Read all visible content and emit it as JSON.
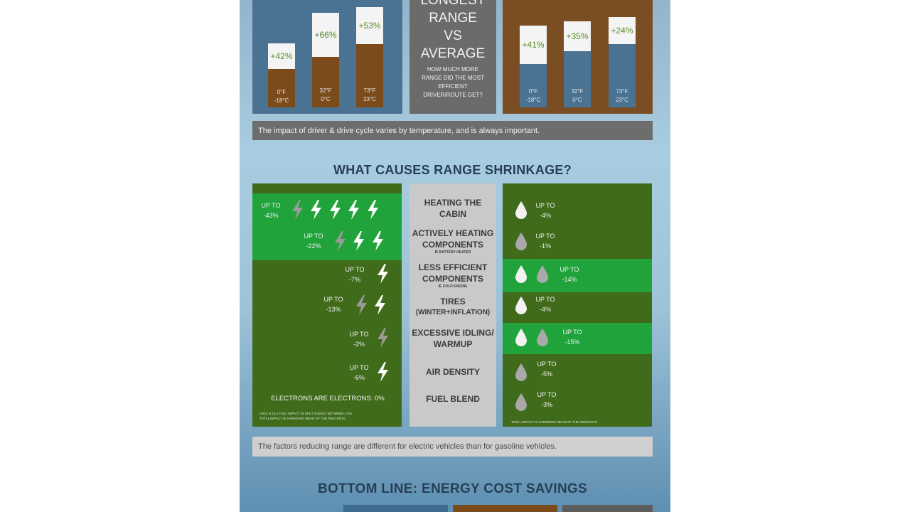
{
  "top": {
    "left_bars": [
      {
        "pct": "+42%",
        "temp_f": "0°F",
        "temp_c": "-18°C"
      },
      {
        "pct": "+66%",
        "temp_f": "32°F",
        "temp_c": "0°C"
      },
      {
        "pct": "+53%",
        "temp_f": "73°F",
        "temp_c": "23°C"
      }
    ],
    "center_title_lines": [
      "LONGEST",
      "RANGE",
      "VS",
      "AVERAGE"
    ],
    "center_sub_lines": [
      "HOW MUCH MORE",
      "RANGE DID THE MOST",
      "EFFICIENT",
      "DRIVER/ROUTE GET?"
    ],
    "right_bars": [
      {
        "pct": "+41%",
        "temp_f": "0°F",
        "temp_c": "-18°C"
      },
      {
        "pct": "+35%",
        "temp_f": "32°F",
        "temp_c": "0°C"
      },
      {
        "pct": "+24%",
        "temp_f": "73°F",
        "temp_c": "23°C"
      }
    ],
    "note": "The impact of driver & drive cycle varies by temperature, and is always important."
  },
  "shrinkage": {
    "title": "WHAT CAUSES RANGE SHRINKAGE?",
    "rows": [
      {
        "label": "HEATING THE",
        "label2": "CABIN",
        "small": "",
        "ev": "UP TO -43%",
        "ev_a": "UP TO",
        "ev_b": "-43%",
        "ice_a": "UP TO",
        "ice_b": "-4%"
      },
      {
        "label": "ACTIVELY HEATING",
        "label2": "COMPONENTS",
        "small": "IE BATTERY HEATER",
        "ev_a": "UP TO",
        "ev_b": "-22%",
        "ice_a": "UP TO",
        "ice_b": "-1%"
      },
      {
        "label": "LESS EFFICIENT",
        "label2": "COMPONENTS",
        "small": "IE COLD ENGINE",
        "ev_a": "UP TO",
        "ev_b": "-7%",
        "ice_a": "UP TO",
        "ice_b": "-14%"
      },
      {
        "label": "TIRES",
        "label2": "(WINTER+INFLATION)",
        "small": "",
        "ev_a": "UP TO",
        "ev_b": "-13%",
        "ice_a": "UP TO",
        "ice_b": "-4%"
      },
      {
        "label": "EXCESSIVE IDLING/",
        "label2": "WARMUP",
        "small": "",
        "ev_a": "UP TO",
        "ev_b": "-2%",
        "ice_a": "UP TO",
        "ice_b": "-15%"
      },
      {
        "label": "AIR DENSITY",
        "label2": "",
        "small": "",
        "ev_a": "UP TO",
        "ev_b": "-6%",
        "ice_a": "UP TO",
        "ice_b": "-5%"
      },
      {
        "label": "FUEL BLEND",
        "label2": "",
        "small": "",
        "ev_a": "",
        "ev_b": "",
        "ice_a": "UP TO",
        "ice_b": "-3%"
      }
    ],
    "electrons": "ELECTRONS ARE ELECTRONS: 0%",
    "ev_footnote1": "HVAC & OLA FUEL IMPACT IS SPLIT EVENLY BETWEEN 1-3% ",
    "ev_footnote2": "TOTAL IMPACT IS HARMONIC MEAN OF THE PERCENTS.",
    "ice_footnote": "TOTAL IMPACT IS HARMONIC MEAN OF THE PERCENTS.",
    "note": "The factors reducing range are different for electric vehicles than for gasoline vehicles."
  },
  "bottom": {
    "title": "BOTTOM LINE: ENERGY COST SAVINGS"
  },
  "colors": {
    "dark_green": "#3f6b1a",
    "bright_green": "#1fa33a",
    "blue_box": "#4a7293",
    "brown_box": "#7a4e22",
    "title_navy": "#273f56"
  }
}
